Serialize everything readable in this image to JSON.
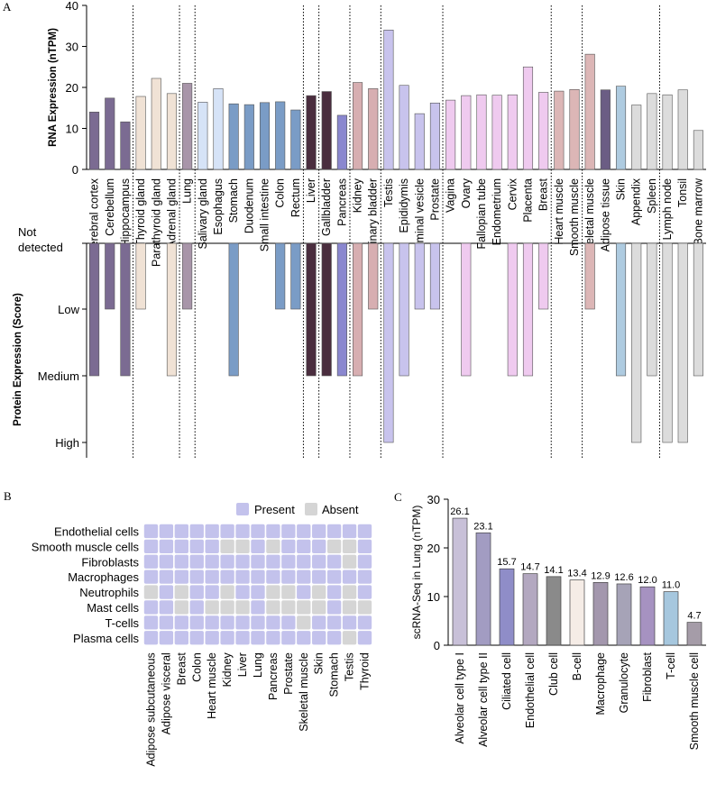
{
  "panels": {
    "a": "A",
    "b": "B",
    "c": "C"
  },
  "chart_data": [
    {
      "id": "A-rna",
      "type": "bar",
      "ylabel": "RNA Expression (nTPM)",
      "ylim": [
        0,
        40
      ],
      "yticks": [
        0,
        10,
        20,
        30,
        40
      ],
      "categories": [
        "Cerebral cortex",
        "Cerebellum",
        "Hippocampus",
        "Thyroid gland",
        "Parathyroid gland",
        "Adrenal gland",
        "Lung",
        "Salivary gland",
        "Esophagus",
        "Stomach",
        "Duodenum",
        "Small intestine",
        "Colon",
        "Rectum",
        "Liver",
        "Gallbladder",
        "Pancreas",
        "Kidney",
        "Urinary bladder",
        "Testis",
        "Epididymis",
        "Seminal vesicle",
        "Prostate",
        "Vagina",
        "Ovary",
        "Fallopian tube",
        "Endometrium",
        "Cervix",
        "Placenta",
        "Breast",
        "Heart muscle",
        "Smooth muscle",
        "Skeletal muscle",
        "Adipose tissue",
        "Skin",
        "Appendix",
        "Spleen",
        "Lymph node",
        "Tonsil",
        "Bone marrow"
      ],
      "values": [
        14.0,
        17.4,
        11.6,
        17.8,
        22.2,
        18.5,
        21.0,
        16.4,
        19.7,
        16.0,
        15.8,
        16.3,
        16.5,
        14.5,
        18.0,
        19.0,
        13.2,
        21.2,
        19.7,
        34.0,
        20.5,
        13.6,
        16.2,
        16.9,
        18.0,
        18.2,
        18.1,
        18.2,
        25.0,
        18.8,
        19.1,
        19.5,
        28.1,
        19.4,
        20.3,
        15.7,
        18.5,
        18.2,
        19.4,
        9.5
      ],
      "colors": [
        "#7b6b92",
        "#7b6b92",
        "#7b6b92",
        "#f0e2d5",
        "#f0e2d5",
        "#f0e2d5",
        "#a895a9",
        "#d6e3f7",
        "#d6e3f7",
        "#7a9cc6",
        "#7a9cc6",
        "#7a9cc6",
        "#7a9cc6",
        "#7a9cc6",
        "#4a2d3e",
        "#4a2d3e",
        "#8a87cf",
        "#d7aeb1",
        "#d7aeb1",
        "#c8c3ed",
        "#c8c3ed",
        "#c8c3ed",
        "#c8c3ed",
        "#efcaef",
        "#efcaef",
        "#efcaef",
        "#efcaef",
        "#efcaef",
        "#efcaef",
        "#efcaef",
        "#dcb6b6",
        "#dcb6b6",
        "#dcb6b6",
        "#6b5d84",
        "#aecbe0",
        "#dcdcdc",
        "#dcdcdc",
        "#dcdcdc",
        "#dcdcdc",
        "#dcdcdc"
      ],
      "groups": [
        3,
        3,
        1,
        7,
        1,
        2,
        2,
        4,
        7,
        2,
        5,
        3
      ]
    },
    {
      "id": "A-protein",
      "type": "bar",
      "ylabel": "Protein Expression (Score)",
      "levels": [
        "Not detected",
        "Low",
        "Medium",
        "High"
      ],
      "values": [
        2,
        1,
        2,
        1,
        0,
        2,
        1,
        0,
        0,
        2,
        0,
        0,
        1,
        1,
        2,
        2,
        2,
        2,
        1,
        3,
        2,
        1,
        1,
        0,
        2,
        0,
        0,
        2,
        2,
        1,
        0,
        0,
        1,
        0,
        2,
        3,
        2,
        3,
        3,
        2
      ]
    },
    {
      "id": "B-presence",
      "type": "heatmap",
      "legend": [
        "Present",
        "Absent"
      ],
      "legend_colors": [
        "#c3c2ec",
        "#d5d5d5"
      ],
      "rows": [
        "Endothelial cells",
        "Smooth muscle cells",
        "Fibroblasts",
        "Macrophages",
        "Neutrophils",
        "Mast cells",
        "T-cells",
        "Plasma cells"
      ],
      "cols": [
        "Adipose subcutaneous",
        "Adipose visceral",
        "Breast",
        "Colon",
        "Heart muscle",
        "Kidney",
        "Liver",
        "Lung",
        "Pancreas",
        "Prostate",
        "Skeletal muscle",
        "Skin",
        "Stomach",
        "Testis",
        "Thyroid"
      ],
      "matrix": [
        [
          1,
          1,
          1,
          1,
          1,
          1,
          1,
          1,
          1,
          1,
          1,
          1,
          1,
          1,
          1
        ],
        [
          1,
          1,
          1,
          1,
          1,
          0,
          0,
          1,
          0,
          1,
          1,
          1,
          0,
          0,
          1
        ],
        [
          1,
          1,
          1,
          1,
          1,
          1,
          1,
          1,
          1,
          1,
          1,
          1,
          1,
          0,
          1
        ],
        [
          1,
          1,
          1,
          1,
          1,
          1,
          1,
          1,
          1,
          1,
          1,
          1,
          1,
          1,
          1
        ],
        [
          0,
          1,
          0,
          1,
          1,
          0,
          1,
          1,
          0,
          0,
          1,
          0,
          1,
          0,
          1
        ],
        [
          1,
          1,
          0,
          1,
          0,
          0,
          0,
          1,
          0,
          0,
          0,
          0,
          1,
          0,
          0
        ],
        [
          1,
          1,
          1,
          1,
          1,
          1,
          1,
          1,
          1,
          1,
          0,
          1,
          1,
          1,
          1
        ],
        [
          1,
          1,
          1,
          1,
          1,
          1,
          1,
          1,
          1,
          1,
          1,
          1,
          1,
          0,
          1
        ]
      ]
    },
    {
      "id": "C-scrna",
      "type": "bar",
      "ylabel": "scRNA-Seq in Lung (nTPM)",
      "ylim": [
        0,
        30
      ],
      "yticks": [
        0,
        10,
        20,
        30
      ],
      "categories": [
        "Alveolar cell type I",
        "Alveolar cell type II",
        "Ciliated cell",
        "Endothelial cell",
        "Club cell",
        "B-cell",
        "Macrophage",
        "Granulocyte",
        "Fibroblast",
        "T-cell",
        "Smooth muscle cell"
      ],
      "values": [
        26.1,
        23.1,
        15.7,
        14.7,
        14.1,
        13.4,
        12.9,
        12.6,
        12.0,
        11.0,
        4.7
      ],
      "labels": [
        "26.1",
        "23.1",
        "15.7",
        "14.7",
        "14.1",
        "13.4",
        "12.9",
        "12.6",
        "12.0",
        "11.0",
        "4.7"
      ],
      "colors": [
        "#c8c0d8",
        "#a29cc2",
        "#8f8dc8",
        "#b3a8c0",
        "#8a8a8a",
        "#f5ece6",
        "#a397ad",
        "#a6a3b7",
        "#a692c1",
        "#a6c7de",
        "#a59ca8"
      ]
    }
  ]
}
